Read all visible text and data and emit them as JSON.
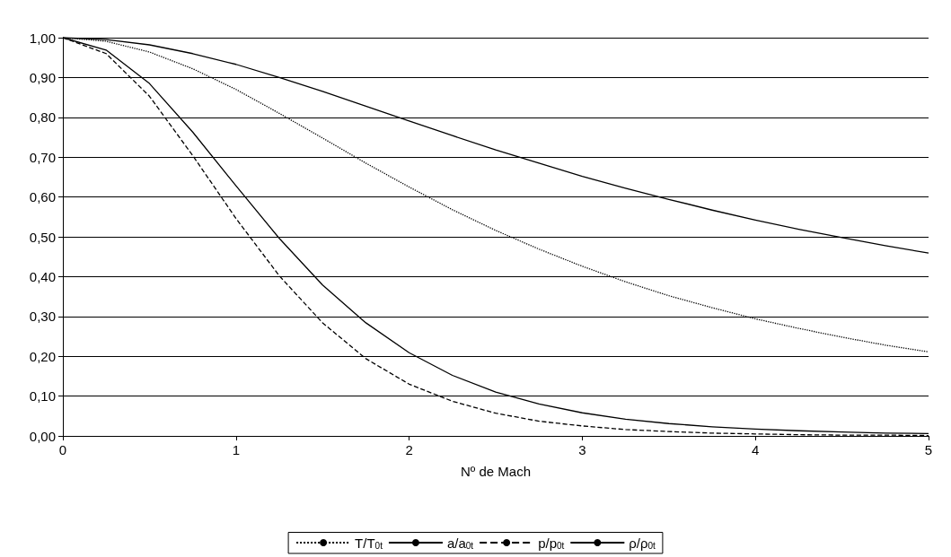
{
  "chart_data": {
    "type": "line",
    "xlabel": "Nº de Mach",
    "x": [
      0,
      0.25,
      0.5,
      0.75,
      1,
      1.25,
      1.5,
      1.75,
      2,
      2.25,
      2.5,
      2.75,
      3,
      3.25,
      3.5,
      3.75,
      4,
      4.25,
      4.5,
      4.75,
      5
    ],
    "series": [
      {
        "name": "T/T$_{0t}$",
        "color": "#000000",
        "line_style": "dotted",
        "values": [
          1,
          0.991,
          0.964,
          0.922,
          0.87,
          0.81,
          0.748,
          0.685,
          0.625,
          0.568,
          0.516,
          0.469,
          0.426,
          0.387,
          0.352,
          0.322,
          0.294,
          0.27,
          0.248,
          0.228,
          0.211
        ]
      },
      {
        "name": "a/a$_{0t}$",
        "color": "#000000",
        "line_style": "solid",
        "values": [
          1,
          0.995,
          0.982,
          0.96,
          0.933,
          0.9,
          0.865,
          0.828,
          0.791,
          0.754,
          0.718,
          0.685,
          0.652,
          0.622,
          0.594,
          0.567,
          0.542,
          0.519,
          0.498,
          0.478,
          0.459
        ]
      },
      {
        "name": "p/p$_{0t}$",
        "color": "#000000",
        "line_style": "dashed",
        "values": [
          1,
          0.96,
          0.853,
          0.704,
          0.546,
          0.402,
          0.284,
          0.194,
          0.13,
          0.087,
          0.057,
          0.037,
          0.025,
          0.016,
          0.011,
          0.007,
          0.005,
          0.003,
          0.002,
          0.002,
          0.001
        ]
      },
      {
        "name": "ρ/ρ$_{0t}$",
        "color": "#000000",
        "line_style": "solid",
        "values": [
          1,
          0.969,
          0.885,
          0.763,
          0.628,
          0.496,
          0.379,
          0.284,
          0.209,
          0.152,
          0.11,
          0.08,
          0.058,
          0.042,
          0.031,
          0.023,
          0.017,
          0.013,
          0.01,
          0.007,
          0.006
        ]
      }
    ],
    "xlim": [
      0,
      5
    ],
    "xticks": [
      0,
      1,
      2,
      3,
      4,
      5
    ],
    "ylim": [
      0,
      1
    ],
    "yticks": [
      {
        "value": 0,
        "label": "0,00"
      },
      {
        "value": 0.1,
        "label": "0,10"
      },
      {
        "value": 0.2,
        "label": "0,20"
      },
      {
        "value": 0.3,
        "label": "0,30"
      },
      {
        "value": 0.4,
        "label": "0,40"
      },
      {
        "value": 0.5,
        "label": "0,50"
      },
      {
        "value": 0.6,
        "label": "0,60"
      },
      {
        "value": 0.7,
        "label": "0,70"
      },
      {
        "value": 0.8,
        "label": "0,80"
      },
      {
        "value": 0.9,
        "label": "0,90"
      },
      {
        "value": 1,
        "label": "1,00"
      }
    ],
    "grid": "y",
    "legend": "bottom",
    "marker": "none"
  }
}
